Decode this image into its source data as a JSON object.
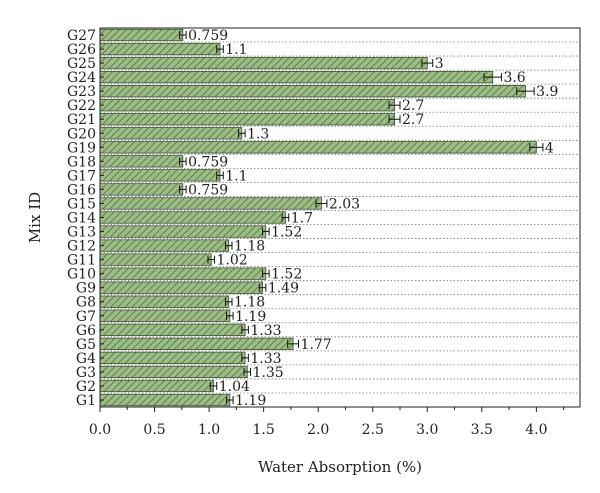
{
  "chart_data": {
    "type": "bar",
    "orientation": "horizontal",
    "categories": [
      "G1",
      "G2",
      "G3",
      "G4",
      "G5",
      "G6",
      "G7",
      "G8",
      "G9",
      "G10",
      "G11",
      "G12",
      "G13",
      "G14",
      "G15",
      "G16",
      "G17",
      "G18",
      "G19",
      "G20",
      "G21",
      "G22",
      "G23",
      "G24",
      "G25",
      "G26",
      "G27"
    ],
    "values": [
      1.19,
      1.04,
      1.35,
      1.33,
      1.77,
      1.33,
      1.19,
      1.18,
      1.49,
      1.52,
      1.02,
      1.18,
      1.52,
      1.7,
      2.03,
      0.759,
      1.1,
      0.759,
      4,
      1.3,
      2.7,
      2.7,
      3.9,
      3.6,
      3,
      1.1,
      0.759
    ],
    "value_labels": [
      "1.19",
      "1.04",
      "1.35",
      "1.33",
      "1.77",
      "1.33",
      "1.19",
      "1.18",
      "1.49",
      "1.52",
      "1.02",
      "1.18",
      "1.52",
      "1.7",
      "2.03",
      "0.759",
      "1.1",
      "0.759",
      "4",
      "1.3",
      "2.7",
      "2.7",
      "3.9",
      "3.6",
      "3",
      "1.1",
      "0.759"
    ],
    "error": [
      0.03,
      0.03,
      0.03,
      0.03,
      0.05,
      0.03,
      0.03,
      0.03,
      0.03,
      0.03,
      0.03,
      0.03,
      0.03,
      0.03,
      0.05,
      0.03,
      0.03,
      0.03,
      0.06,
      0.03,
      0.05,
      0.05,
      0.08,
      0.08,
      0.05,
      0.03,
      0.03
    ],
    "xlabel": "Water Absorption (%)",
    "ylabel": "Mix ID",
    "xlim": [
      0,
      4.4
    ],
    "xticks": [
      "0.0",
      "0.5",
      "1.0",
      "1.5",
      "2.0",
      "2.5",
      "3.0",
      "3.5",
      "4.0"
    ],
    "grid": "dotted horizontal",
    "bar_color": "#8fb07a",
    "bar_hatch": "diagonal"
  }
}
